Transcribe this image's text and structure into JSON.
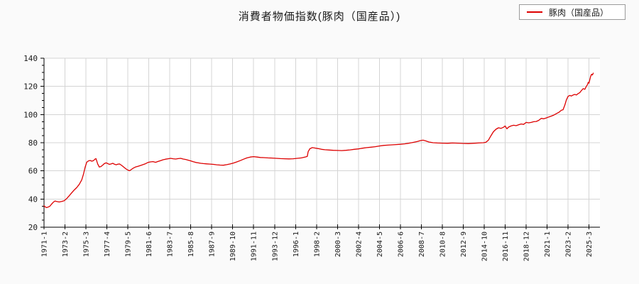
{
  "page": {
    "background": "#fafafa"
  },
  "title": "消費者物価指数(豚肉（国産品）)",
  "legend": {
    "label": "豚肉（国産品）",
    "line_color": "#dd0000",
    "position": "top-right"
  },
  "chart_data": {
    "type": "line",
    "title": "消費者物価指数(豚肉（国産品）)",
    "xlabel": "",
    "ylabel": "",
    "x_unit": "year-month, monthly series; x positions are months since 1971-01",
    "ylim": [
      20,
      140
    ],
    "xlim": [
      0,
      663
    ],
    "y_ticks": [
      20,
      40,
      60,
      80,
      100,
      120,
      140
    ],
    "y_minor_step": 5,
    "grid": true,
    "grid_color": "#d4d4d4",
    "axis_color": "#000000",
    "plot_background": "#ffffff",
    "legend_position": "top-right",
    "x_ticks": [
      {
        "pos": 0,
        "label": "1971-1"
      },
      {
        "pos": 25,
        "label": "1973-2"
      },
      {
        "pos": 50,
        "label": "1975-3"
      },
      {
        "pos": 75,
        "label": "1977-4"
      },
      {
        "pos": 100,
        "label": "1979-5"
      },
      {
        "pos": 125,
        "label": "1981-6"
      },
      {
        "pos": 150,
        "label": "1983-7"
      },
      {
        "pos": 175,
        "label": "1985-8"
      },
      {
        "pos": 200,
        "label": "1987-9"
      },
      {
        "pos": 225,
        "label": "1989-10"
      },
      {
        "pos": 250,
        "label": "1991-11"
      },
      {
        "pos": 275,
        "label": "1993-12"
      },
      {
        "pos": 300,
        "label": "1996-1"
      },
      {
        "pos": 325,
        "label": "1998-2"
      },
      {
        "pos": 350,
        "label": "2000-3"
      },
      {
        "pos": 375,
        "label": "2002-4"
      },
      {
        "pos": 400,
        "label": "2004-5"
      },
      {
        "pos": 425,
        "label": "2006-6"
      },
      {
        "pos": 450,
        "label": "2008-7"
      },
      {
        "pos": 475,
        "label": "2010-8"
      },
      {
        "pos": 500,
        "label": "2012-9"
      },
      {
        "pos": 525,
        "label": "2014-10"
      },
      {
        "pos": 550,
        "label": "2016-11"
      },
      {
        "pos": 575,
        "label": "2018-12"
      },
      {
        "pos": 600,
        "label": "2021-1"
      },
      {
        "pos": 625,
        "label": "2023-2"
      },
      {
        "pos": 650,
        "label": "2025-3"
      }
    ],
    "series": [
      {
        "name": "豚肉（国産品）",
        "color": "#dd0000",
        "points": [
          [
            0,
            35.3
          ],
          [
            1,
            34.6
          ],
          [
            3,
            33.9
          ],
          [
            5,
            34.3
          ],
          [
            7,
            34.9
          ],
          [
            9,
            36.4
          ],
          [
            11,
            37.7
          ],
          [
            13,
            38.6
          ],
          [
            15,
            38.3
          ],
          [
            18,
            37.9
          ],
          [
            21,
            38.3
          ],
          [
            24,
            38.8
          ],
          [
            27,
            40.3
          ],
          [
            30,
            42.3
          ],
          [
            33,
            44.4
          ],
          [
            36,
            46.4
          ],
          [
            39,
            48.2
          ],
          [
            42,
            50.4
          ],
          [
            45,
            53.6
          ],
          [
            47,
            57.5
          ],
          [
            49,
            62.6
          ],
          [
            51,
            66.2
          ],
          [
            53,
            67.1
          ],
          [
            55,
            67.4
          ],
          [
            57,
            66.9
          ],
          [
            59,
            67.3
          ],
          [
            61,
            68.4
          ],
          [
            62,
            68.7
          ],
          [
            64,
            64.9
          ],
          [
            66,
            62.7
          ],
          [
            68,
            63.1
          ],
          [
            70,
            64.1
          ],
          [
            72,
            65.2
          ],
          [
            74,
            65.7
          ],
          [
            76,
            65.2
          ],
          [
            78,
            64.6
          ],
          [
            80,
            64.9
          ],
          [
            82,
            65.4
          ],
          [
            84,
            64.7
          ],
          [
            86,
            64.3
          ],
          [
            88,
            64.7
          ],
          [
            90,
            64.9
          ],
          [
            92,
            64.1
          ],
          [
            94,
            63.2
          ],
          [
            96,
            62.2
          ],
          [
            98,
            61.3
          ],
          [
            100,
            60.6
          ],
          [
            102,
            60.1
          ],
          [
            104,
            60.9
          ],
          [
            106,
            61.8
          ],
          [
            109,
            62.7
          ],
          [
            112,
            63.2
          ],
          [
            115,
            63.8
          ],
          [
            118,
            64.4
          ],
          [
            121,
            65.1
          ],
          [
            124,
            66.0
          ],
          [
            127,
            66.4
          ],
          [
            130,
            66.6
          ],
          [
            133,
            66.1
          ],
          [
            136,
            66.7
          ],
          [
            139,
            67.3
          ],
          [
            142,
            67.9
          ],
          [
            145,
            68.3
          ],
          [
            148,
            68.6
          ],
          [
            151,
            68.9
          ],
          [
            154,
            68.6
          ],
          [
            157,
            68.4
          ],
          [
            160,
            68.7
          ],
          [
            163,
            68.9
          ],
          [
            166,
            68.4
          ],
          [
            169,
            68.1
          ],
          [
            172,
            67.6
          ],
          [
            175,
            67.1
          ],
          [
            178,
            66.5
          ],
          [
            181,
            66.0
          ],
          [
            184,
            65.7
          ],
          [
            187,
            65.4
          ],
          [
            190,
            65.2
          ],
          [
            194,
            65.0
          ],
          [
            198,
            64.8
          ],
          [
            202,
            64.6
          ],
          [
            206,
            64.3
          ],
          [
            210,
            64.1
          ],
          [
            214,
            64.0
          ],
          [
            218,
            64.4
          ],
          [
            222,
            64.9
          ],
          [
            226,
            65.6
          ],
          [
            230,
            66.4
          ],
          [
            234,
            67.3
          ],
          [
            238,
            68.3
          ],
          [
            242,
            69.2
          ],
          [
            246,
            69.8
          ],
          [
            250,
            70.1
          ],
          [
            254,
            69.8
          ],
          [
            258,
            69.5
          ],
          [
            262,
            69.4
          ],
          [
            267,
            69.2
          ],
          [
            272,
            69.1
          ],
          [
            277,
            68.9
          ],
          [
            282,
            68.7
          ],
          [
            287,
            68.6
          ],
          [
            292,
            68.5
          ],
          [
            297,
            68.6
          ],
          [
            302,
            68.9
          ],
          [
            307,
            69.2
          ],
          [
            312,
            69.9
          ],
          [
            314,
            70.3
          ],
          [
            315,
            73.6
          ],
          [
            317,
            75.7
          ],
          [
            320,
            76.5
          ],
          [
            323,
            76.2
          ],
          [
            327,
            75.8
          ],
          [
            331,
            75.3
          ],
          [
            335,
            75.0
          ],
          [
            340,
            74.8
          ],
          [
            345,
            74.6
          ],
          [
            350,
            74.5
          ],
          [
            355,
            74.4
          ],
          [
            360,
            74.6
          ],
          [
            365,
            74.9
          ],
          [
            370,
            75.3
          ],
          [
            375,
            75.6
          ],
          [
            380,
            76.1
          ],
          [
            385,
            76.5
          ],
          [
            390,
            76.8
          ],
          [
            395,
            77.2
          ],
          [
            400,
            77.7
          ],
          [
            405,
            78.1
          ],
          [
            410,
            78.3
          ],
          [
            415,
            78.5
          ],
          [
            420,
            78.7
          ],
          [
            425,
            78.9
          ],
          [
            430,
            79.2
          ],
          [
            435,
            79.6
          ],
          [
            440,
            80.2
          ],
          [
            445,
            80.8
          ],
          [
            449,
            81.5
          ],
          [
            452,
            81.8
          ],
          [
            455,
            81.3
          ],
          [
            459,
            80.5
          ],
          [
            464,
            80.0
          ],
          [
            469,
            79.8
          ],
          [
            475,
            79.7
          ],
          [
            481,
            79.6
          ],
          [
            487,
            79.8
          ],
          [
            493,
            79.7
          ],
          [
            500,
            79.5
          ],
          [
            506,
            79.4
          ],
          [
            512,
            79.6
          ],
          [
            518,
            79.8
          ],
          [
            524,
            80.0
          ],
          [
            527,
            80.3
          ],
          [
            530,
            81.8
          ],
          [
            533,
            85.0
          ],
          [
            536,
            87.8
          ],
          [
            539,
            89.6
          ],
          [
            542,
            90.6
          ],
          [
            545,
            90.2
          ],
          [
            548,
            91.0
          ],
          [
            550,
            91.9
          ],
          [
            552,
            89.9
          ],
          [
            554,
            91.1
          ],
          [
            557,
            91.9
          ],
          [
            560,
            92.4
          ],
          [
            563,
            92.1
          ],
          [
            566,
            92.7
          ],
          [
            569,
            93.3
          ],
          [
            572,
            93.0
          ],
          [
            575,
            94.4
          ],
          [
            578,
            94.1
          ],
          [
            581,
            94.4
          ],
          [
            584,
            94.9
          ],
          [
            587,
            95.1
          ],
          [
            590,
            95.9
          ],
          [
            593,
            97.3
          ],
          [
            596,
            97.0
          ],
          [
            599,
            97.6
          ],
          [
            602,
            98.3
          ],
          [
            605,
            98.9
          ],
          [
            608,
            99.6
          ],
          [
            611,
            100.6
          ],
          [
            614,
            101.6
          ],
          [
            617,
            103.1
          ],
          [
            619,
            103.4
          ],
          [
            621,
            106.5
          ],
          [
            623,
            110.5
          ],
          [
            625,
            112.9
          ],
          [
            627,
            113.6
          ],
          [
            629,
            113.2
          ],
          [
            631,
            113.9
          ],
          [
            633,
            114.3
          ],
          [
            635,
            113.9
          ],
          [
            637,
            114.9
          ],
          [
            639,
            115.6
          ],
          [
            641,
            117.1
          ],
          [
            643,
            118.4
          ],
          [
            645,
            117.9
          ],
          [
            647,
            120.3
          ],
          [
            648,
            121.1
          ],
          [
            649,
            122.9
          ],
          [
            650,
            122.3
          ],
          [
            651,
            124.9
          ],
          [
            652,
            127.3
          ],
          [
            653,
            128.6
          ],
          [
            654,
            128.1
          ],
          [
            655,
            129.4
          ]
        ]
      }
    ]
  }
}
